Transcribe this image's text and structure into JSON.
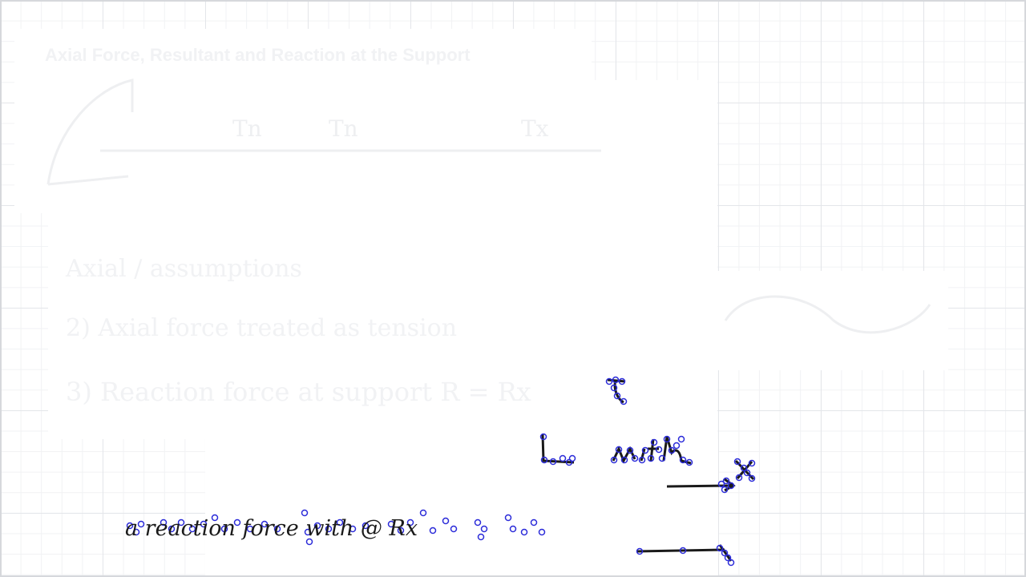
{
  "page": {
    "title": "Axial Force, Resultant and Reaction at the Support"
  },
  "faded_notes": {
    "heading": "Axial / assumptions",
    "line_1": "2) Axial force treated as tension",
    "line_2": "3) Reaction force at support  R = Rx"
  },
  "ink": {
    "color": "#1a1a1a",
    "selection_color": "#2b2bd9",
    "reaction_text": "a reaction force with @ Rx"
  }
}
